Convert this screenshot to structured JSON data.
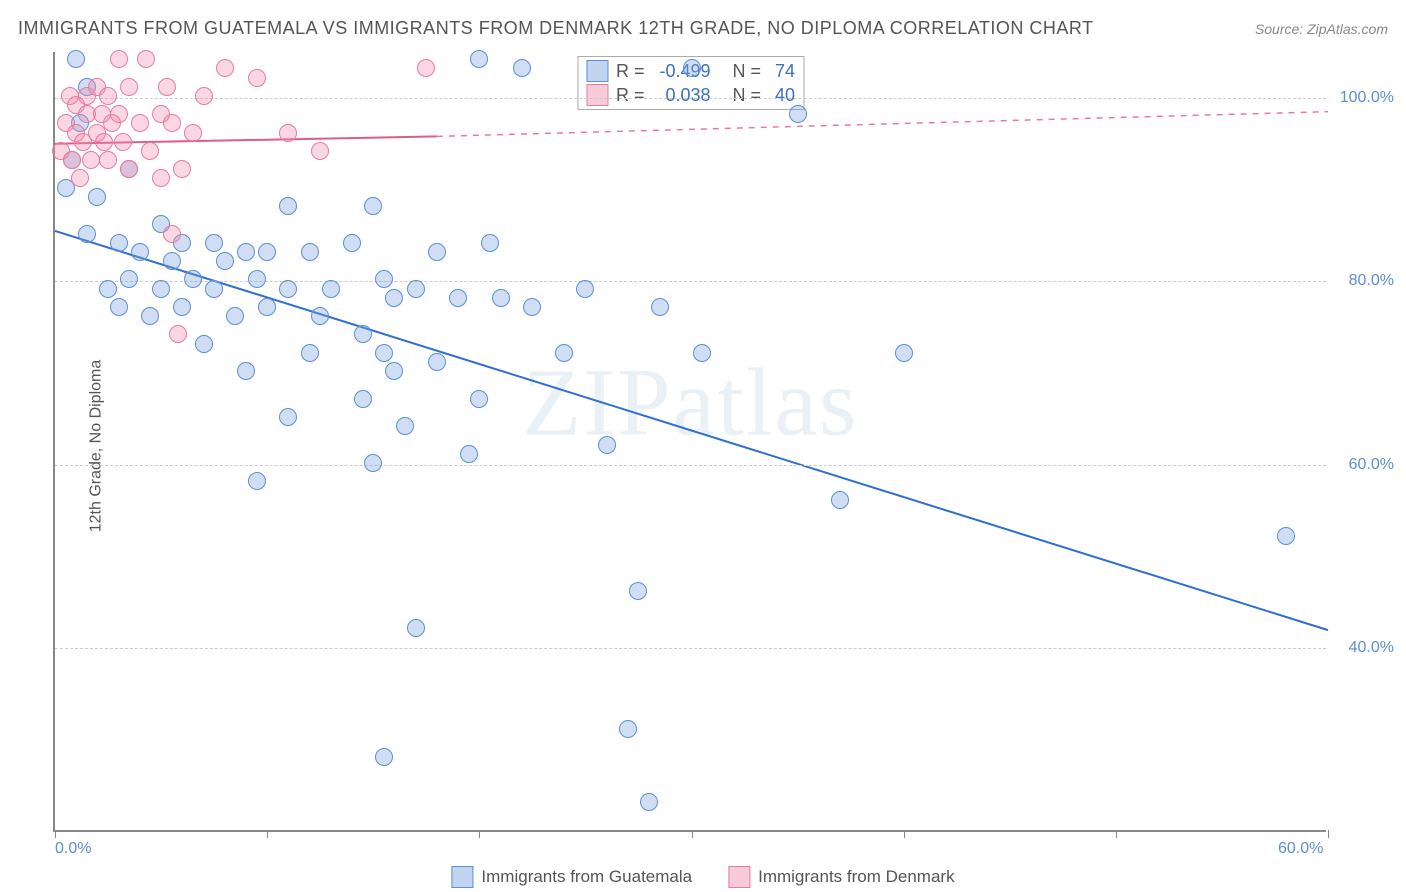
{
  "title": "IMMIGRANTS FROM GUATEMALA VS IMMIGRANTS FROM DENMARK 12TH GRADE, NO DIPLOMA CORRELATION CHART",
  "source_label": "Source: ",
  "source_name": "ZipAtlas.com",
  "y_axis_label": "12th Grade, No Diploma",
  "watermark": "ZIPatlas",
  "chart": {
    "type": "scatter",
    "xlim": [
      0,
      60
    ],
    "ylim": [
      20,
      105
    ],
    "x_ticks": [
      0,
      10,
      20,
      30,
      40,
      50,
      60
    ],
    "x_tick_labels_shown": {
      "0": "0.0%",
      "60": "60.0%"
    },
    "y_ticks": [
      40,
      60,
      80,
      100
    ],
    "y_tick_labels": [
      "40.0%",
      "60.0%",
      "80.0%",
      "100.0%"
    ],
    "background_color": "#ffffff",
    "grid_color": "#cccccc",
    "axis_color": "#888888",
    "marker_radius": 9,
    "series": [
      {
        "name": "Immigrants from Guatemala",
        "color_fill": "rgba(120,160,220,0.35)",
        "color_stroke": "#5b8fd6",
        "R": -0.499,
        "N": 74,
        "trend": {
          "x1": 0,
          "y1": 85.5,
          "x2": 60,
          "y2": 42.0,
          "stroke": "#2f6fd0",
          "width": 2,
          "dash": "none"
        },
        "points": [
          [
            0.5,
            90
          ],
          [
            0.8,
            93
          ],
          [
            1.0,
            104
          ],
          [
            1.2,
            97
          ],
          [
            1.5,
            85
          ],
          [
            1.5,
            101
          ],
          [
            2.0,
            89
          ],
          [
            2.5,
            79
          ],
          [
            3.0,
            77
          ],
          [
            3.0,
            84
          ],
          [
            3.5,
            92
          ],
          [
            3.5,
            80
          ],
          [
            4.0,
            83
          ],
          [
            4.5,
            76
          ],
          [
            5.0,
            86
          ],
          [
            5.0,
            79
          ],
          [
            5.5,
            82
          ],
          [
            6.0,
            77
          ],
          [
            6.0,
            84
          ],
          [
            6.5,
            80
          ],
          [
            7.0,
            73
          ],
          [
            7.5,
            84
          ],
          [
            7.5,
            79
          ],
          [
            8.0,
            82
          ],
          [
            8.5,
            76
          ],
          [
            9.0,
            83
          ],
          [
            9.0,
            70
          ],
          [
            9.5,
            58
          ],
          [
            9.5,
            80
          ],
          [
            10.0,
            83
          ],
          [
            10.0,
            77
          ],
          [
            11.0,
            88
          ],
          [
            11.0,
            79
          ],
          [
            11.0,
            65
          ],
          [
            12.0,
            83
          ],
          [
            12.0,
            72
          ],
          [
            12.5,
            76
          ],
          [
            13.0,
            79
          ],
          [
            14.0,
            84
          ],
          [
            14.5,
            74
          ],
          [
            14.5,
            67
          ],
          [
            15.0,
            88
          ],
          [
            15.0,
            60
          ],
          [
            15.5,
            80
          ],
          [
            15.5,
            72
          ],
          [
            15.5,
            28
          ],
          [
            16.0,
            70
          ],
          [
            16.0,
            78
          ],
          [
            16.5,
            64
          ],
          [
            17.0,
            79
          ],
          [
            17.0,
            42
          ],
          [
            18.0,
            83
          ],
          [
            18.0,
            71
          ],
          [
            19.0,
            78
          ],
          [
            19.5,
            61
          ],
          [
            20.0,
            104
          ],
          [
            20.0,
            67
          ],
          [
            20.5,
            84
          ],
          [
            21.0,
            78
          ],
          [
            22.0,
            103
          ],
          [
            22.5,
            77
          ],
          [
            24.0,
            72
          ],
          [
            25.0,
            79
          ],
          [
            26.0,
            62
          ],
          [
            27.0,
            31
          ],
          [
            27.5,
            46
          ],
          [
            28.0,
            23
          ],
          [
            28.5,
            77
          ],
          [
            30.0,
            103
          ],
          [
            30.5,
            72
          ],
          [
            35.0,
            98
          ],
          [
            37.0,
            56
          ],
          [
            40.0,
            72
          ],
          [
            58.0,
            52
          ]
        ]
      },
      {
        "name": "Immigrants from Denmark",
        "color_fill": "rgba(240,140,170,0.35)",
        "color_stroke": "#e87ba4",
        "R": 0.038,
        "N": 40,
        "trend_solid": {
          "x1": 0,
          "y1": 95.0,
          "x2": 18,
          "y2": 95.8,
          "stroke": "#e05a8c",
          "width": 2
        },
        "trend_dash": {
          "x1": 18,
          "y1": 95.8,
          "x2": 60,
          "y2": 98.5,
          "stroke": "#e87ba4",
          "width": 1.5
        },
        "points": [
          [
            0.3,
            94
          ],
          [
            0.5,
            97
          ],
          [
            0.7,
            100
          ],
          [
            0.8,
            93
          ],
          [
            1.0,
            96
          ],
          [
            1.0,
            99
          ],
          [
            1.2,
            91
          ],
          [
            1.3,
            95
          ],
          [
            1.5,
            98
          ],
          [
            1.5,
            100
          ],
          [
            1.7,
            93
          ],
          [
            2.0,
            96
          ],
          [
            2.0,
            101
          ],
          [
            2.2,
            98
          ],
          [
            2.3,
            95
          ],
          [
            2.5,
            100
          ],
          [
            2.5,
            93
          ],
          [
            2.7,
            97
          ],
          [
            3.0,
            104
          ],
          [
            3.0,
            98
          ],
          [
            3.2,
            95
          ],
          [
            3.5,
            101
          ],
          [
            3.5,
            92
          ],
          [
            4.0,
            97
          ],
          [
            4.3,
            104
          ],
          [
            4.5,
            94
          ],
          [
            5.0,
            98
          ],
          [
            5.0,
            91
          ],
          [
            5.3,
            101
          ],
          [
            5.5,
            85
          ],
          [
            5.5,
            97
          ],
          [
            5.8,
            74
          ],
          [
            6.0,
            92
          ],
          [
            6.5,
            96
          ],
          [
            7.0,
            100
          ],
          [
            8.0,
            103
          ],
          [
            9.5,
            102
          ],
          [
            11.0,
            96
          ],
          [
            12.5,
            94
          ],
          [
            17.5,
            103
          ]
        ]
      }
    ]
  },
  "stats_box": {
    "rows": [
      {
        "swatch": "blue",
        "R_label": "R =",
        "R_value": "-0.499",
        "N_label": "N =",
        "N_value": "74"
      },
      {
        "swatch": "pink",
        "R_label": "R =",
        "R_value": "0.038",
        "N_label": "N =",
        "N_value": "40"
      }
    ]
  },
  "bottom_legend": {
    "items": [
      {
        "swatch": "blue",
        "label": "Immigrants from Guatemala"
      },
      {
        "swatch": "pink",
        "label": "Immigrants from Denmark"
      }
    ]
  }
}
